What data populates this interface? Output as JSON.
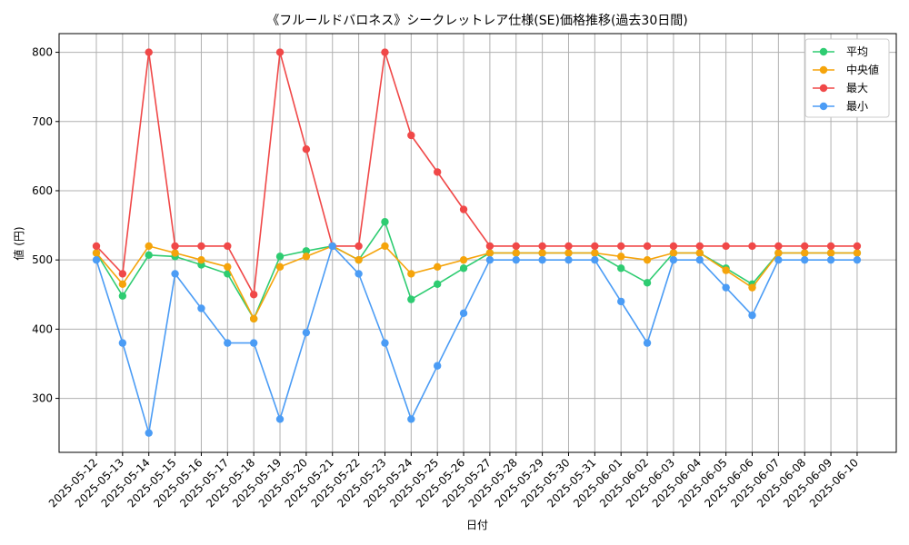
{
  "chart_data": {
    "type": "line",
    "title": "《フルールドバロネス》シークレットレア仕様(SE)価格推移(過去30日間)",
    "xlabel": "日付",
    "ylabel": "値 (円)",
    "ylim": [
      222,
      827
    ],
    "yticks": [
      300,
      400,
      500,
      600,
      700,
      800
    ],
    "grid": true,
    "legend_position": "top-right",
    "categories": [
      "2025-05-12",
      "2025-05-13",
      "2025-05-14",
      "2025-05-15",
      "2025-05-16",
      "2025-05-17",
      "2025-05-18",
      "2025-05-19",
      "2025-05-20",
      "2025-05-21",
      "2025-05-22",
      "2025-05-23",
      "2025-05-24",
      "2025-05-25",
      "2025-05-26",
      "2025-05-27",
      "2025-05-28",
      "2025-05-29",
      "2025-05-30",
      "2025-05-31",
      "2025-06-01",
      "2025-06-02",
      "2025-06-03",
      "2025-06-04",
      "2025-06-05",
      "2025-06-06",
      "2025-06-07",
      "2025-06-08",
      "2025-06-09",
      "2025-06-10"
    ],
    "series": [
      {
        "name": "平均",
        "color": "#2ecc71",
        "values": [
          510,
          448,
          507,
          505,
          493,
          480,
          415,
          505,
          513,
          520,
          500,
          555,
          443,
          465,
          488,
          510,
          510,
          510,
          510,
          510,
          488,
          467,
          510,
          510,
          488,
          465,
          510,
          510,
          510,
          510
        ]
      },
      {
        "name": "中央値",
        "color": "#f5a40b",
        "values": [
          510,
          465,
          520,
          510,
          500,
          490,
          415,
          490,
          505,
          520,
          500,
          520,
          480,
          490,
          500,
          510,
          510,
          510,
          510,
          510,
          505,
          500,
          510,
          510,
          485,
          460,
          510,
          510,
          510,
          510
        ]
      },
      {
        "name": "最大",
        "color": "#f04848",
        "values": [
          520,
          480,
          800,
          520,
          520,
          520,
          450,
          800,
          660,
          520,
          520,
          800,
          680,
          627,
          573,
          520,
          520,
          520,
          520,
          520,
          520,
          520,
          520,
          520,
          520,
          520,
          520,
          520,
          520,
          520
        ]
      },
      {
        "name": "最小",
        "color": "#4b9cf5",
        "values": [
          500,
          380,
          250,
          480,
          430,
          380,
          380,
          270,
          395,
          520,
          480,
          380,
          270,
          347,
          423,
          500,
          500,
          500,
          500,
          500,
          440,
          380,
          500,
          500,
          460,
          420,
          500,
          500,
          500,
          500
        ]
      }
    ]
  }
}
